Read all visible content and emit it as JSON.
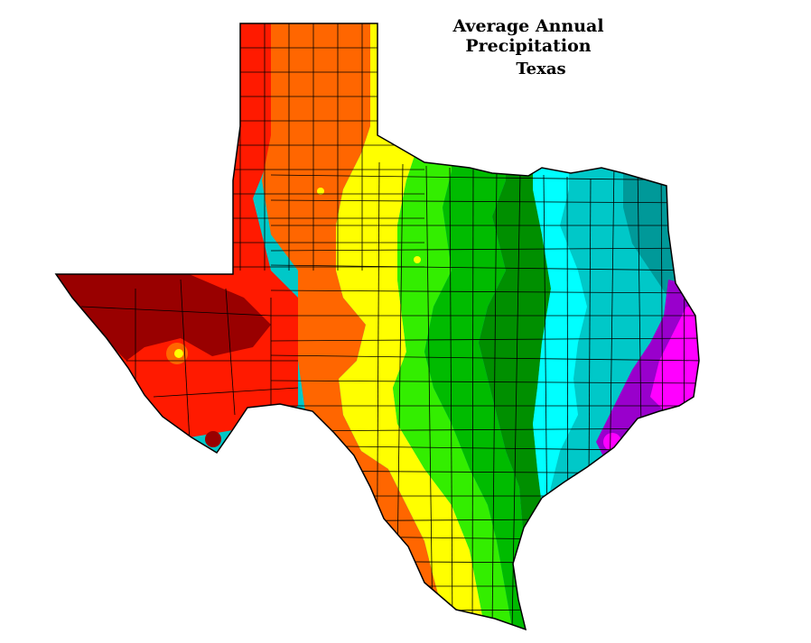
{
  "title": "Average Annual Precipitation",
  "subtitle": "Texas",
  "map": {
    "region": "Texas",
    "zones": [
      {
        "key": "z1",
        "color": "#990000"
      },
      {
        "key": "z2",
        "color": "#ff1a00"
      },
      {
        "key": "z3",
        "color": "#ff6600"
      },
      {
        "key": "z4",
        "color": "#ffff00"
      },
      {
        "key": "z5",
        "color": "#33ee00"
      },
      {
        "key": "z6",
        "color": "#00bb00"
      },
      {
        "key": "z7",
        "color": "#008f00"
      },
      {
        "key": "z8",
        "color": "#00ffff"
      },
      {
        "key": "z9",
        "color": "#00c8c8"
      },
      {
        "key": "z10",
        "color": "#009999"
      },
      {
        "key": "z11",
        "color": "#9900cc"
      },
      {
        "key": "z12",
        "color": "#ff00ff"
      }
    ],
    "border_color": "#000000",
    "county_line_color": "#000000"
  }
}
